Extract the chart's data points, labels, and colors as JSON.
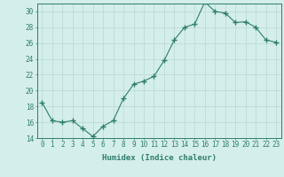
{
  "xlabel": "Humidex (Indice chaleur)",
  "x": [
    0,
    1,
    2,
    3,
    4,
    5,
    6,
    7,
    8,
    9,
    10,
    11,
    12,
    13,
    14,
    15,
    16,
    17,
    18,
    19,
    20,
    21,
    22,
    23
  ],
  "y": [
    18.5,
    16.2,
    16.0,
    16.2,
    15.2,
    14.2,
    15.5,
    16.2,
    19.0,
    20.8,
    21.2,
    21.8,
    23.8,
    26.4,
    28.0,
    28.4,
    31.2,
    30.0,
    29.8,
    28.6,
    28.7,
    28.0,
    26.4,
    26.1
  ],
  "ylim": [
    14,
    31
  ],
  "yticks": [
    14,
    16,
    18,
    20,
    22,
    24,
    26,
    28,
    30
  ],
  "xlim": [
    -0.5,
    23.5
  ],
  "line_color": "#2e7d6e",
  "marker": "+",
  "marker_size": 4,
  "bg_color": "#d4eeeb",
  "grid_color": "#b8d8d4",
  "axis_label_color": "#2e7d6e",
  "tick_color": "#2e7d6e",
  "spine_color": "#2e7d6e",
  "font_size_axis": 6.5,
  "font_size_ticks": 5.5
}
